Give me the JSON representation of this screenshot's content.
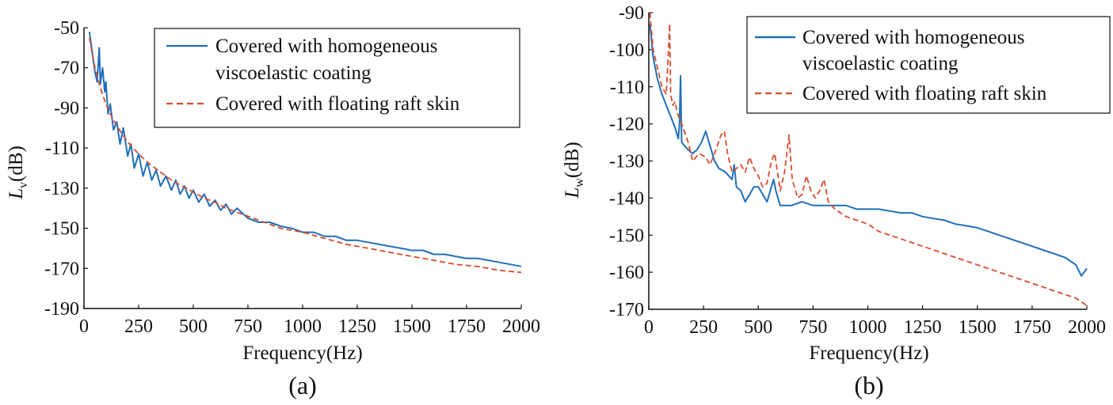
{
  "colors": {
    "blue": "#1f6fba",
    "red": "#d94a2a"
  },
  "chart_data": [
    {
      "type": "line",
      "panel_label": "(a)",
      "xlabel": "Frequency(Hz)",
      "ylabel_main": "L",
      "ylabel_sub": "v",
      "ylabel_unit": "(dB)",
      "xlim": [
        0,
        2000
      ],
      "ylim": [
        -190,
        -50
      ],
      "xticks": [
        0,
        250,
        500,
        750,
        1000,
        1250,
        1500,
        1750,
        2000
      ],
      "xtick_labels": [
        "0",
        "250",
        "500",
        "750",
        "1000",
        "1250",
        "1500",
        "1750",
        "2000"
      ],
      "yticks": [
        -50,
        -70,
        -90,
        -110,
        -130,
        -150,
        -170,
        -190
      ],
      "ytick_labels": [
        "-50",
        "-70",
        "-90",
        "-110",
        "-130",
        "-150",
        "-170",
        "-190"
      ],
      "legend": [
        "Covered with homogeneous viscoelastic coating",
        "Covered with floating raft skin"
      ],
      "legend_lines": [
        [
          "Covered with homogeneous",
          "viscoelastic coating"
        ],
        [
          "Covered with floating raft skin"
        ]
      ],
      "series": [
        {
          "name": "Covered with homogeneous viscoelastic coating",
          "style": "solid",
          "x": [
            25,
            50,
            60,
            70,
            75,
            85,
            95,
            100,
            110,
            120,
            135,
            150,
            165,
            180,
            200,
            215,
            230,
            250,
            270,
            290,
            310,
            330,
            350,
            375,
            400,
            420,
            440,
            460,
            480,
            500,
            525,
            550,
            575,
            600,
            625,
            650,
            675,
            700,
            750,
            800,
            850,
            900,
            950,
            1000,
            1050,
            1100,
            1150,
            1200,
            1250,
            1300,
            1350,
            1400,
            1450,
            1500,
            1550,
            1600,
            1650,
            1700,
            1750,
            1800,
            1850,
            1900,
            1950,
            2000
          ],
          "y": [
            -52,
            -72,
            -77,
            -60,
            -78,
            -70,
            -82,
            -77,
            -93,
            -88,
            -101,
            -97,
            -108,
            -100,
            -114,
            -108,
            -120,
            -113,
            -124,
            -117,
            -126,
            -121,
            -129,
            -124,
            -131,
            -126,
            -133,
            -129,
            -135,
            -131,
            -137,
            -133,
            -139,
            -136,
            -141,
            -138,
            -143,
            -140,
            -145,
            -147,
            -147,
            -149,
            -150,
            -152,
            -152,
            -154,
            -154,
            -156,
            -156,
            -157,
            -158,
            -159,
            -160,
            -161,
            -161,
            -163,
            -163,
            -164,
            -165,
            -165,
            -166,
            -167,
            -168,
            -169
          ]
        },
        {
          "name": "Covered with floating raft skin",
          "style": "dashed",
          "x": [
            25,
            50,
            75,
            100,
            125,
            150,
            175,
            200,
            250,
            300,
            350,
            400,
            450,
            500,
            550,
            600,
            650,
            700,
            750,
            800,
            850,
            900,
            950,
            1000,
            1100,
            1200,
            1300,
            1400,
            1500,
            1600,
            1700,
            1800,
            1900,
            2000
          ],
          "y": [
            -55,
            -70,
            -80,
            -88,
            -94,
            -99,
            -103,
            -107,
            -113,
            -118,
            -122,
            -126,
            -129,
            -132,
            -135,
            -137,
            -140,
            -142,
            -144,
            -146,
            -148,
            -150,
            -151,
            -152,
            -155,
            -158,
            -160,
            -162,
            -164,
            -166,
            -168,
            -169,
            -171,
            -172
          ]
        }
      ]
    },
    {
      "type": "line",
      "panel_label": "(b)",
      "xlabel": "Frequency(Hz)",
      "ylabel_main": "L",
      "ylabel_sub": "w",
      "ylabel_unit": "(dB)",
      "xlim": [
        0,
        2000
      ],
      "ylim": [
        -170,
        -90
      ],
      "xticks": [
        0,
        250,
        500,
        750,
        1000,
        1250,
        1500,
        1750,
        2000
      ],
      "xtick_labels": [
        "0",
        "250",
        "500",
        "750",
        "1000",
        "1250",
        "1500",
        "1750",
        "2000"
      ],
      "yticks": [
        -90,
        -100,
        -110,
        -120,
        -130,
        -140,
        -150,
        -160,
        -170
      ],
      "ytick_labels": [
        "-90",
        "-100",
        "-110",
        "-120",
        "-130",
        "-140",
        "-150",
        "-160",
        "-170"
      ],
      "legend": [
        "Covered with homogeneous viscoelastic coating",
        "Covered with floating raft skin"
      ],
      "legend_lines": [
        [
          "Covered with homogeneous",
          "viscoelastic coating"
        ],
        [
          "Covered with floating raft skin"
        ]
      ],
      "series": [
        {
          "name": "Covered with homogeneous viscoelastic coating",
          "style": "solid",
          "x": [
            5,
            20,
            40,
            60,
            80,
            100,
            120,
            135,
            140,
            145,
            150,
            165,
            180,
            200,
            220,
            240,
            260,
            280,
            300,
            320,
            350,
            380,
            390,
            400,
            420,
            440,
            460,
            480,
            500,
            520,
            540,
            560,
            570,
            580,
            600,
            650,
            700,
            750,
            800,
            850,
            900,
            950,
            1000,
            1050,
            1100,
            1150,
            1200,
            1250,
            1300,
            1350,
            1400,
            1450,
            1500,
            1550,
            1600,
            1650,
            1700,
            1750,
            1800,
            1850,
            1900,
            1950,
            1975,
            2000
          ],
          "y": [
            -93,
            -102,
            -108,
            -112,
            -115,
            -118,
            -121,
            -124,
            -120,
            -107,
            -125,
            -126,
            -127,
            -128,
            -127,
            -125,
            -122,
            -126,
            -130,
            -132,
            -133,
            -135,
            -131,
            -137,
            -138,
            -141,
            -139,
            -137,
            -137,
            -139,
            -141,
            -137,
            -135,
            -138,
            -142,
            -142,
            -141,
            -142,
            -142,
            -142,
            -142,
            -143,
            -143,
            -143,
            -143.5,
            -144,
            -144,
            -145,
            -145.5,
            -146,
            -147,
            -147.5,
            -148,
            -149,
            -150,
            -151,
            -152,
            -153,
            -154,
            -155,
            -156,
            -158,
            -161,
            -159
          ]
        },
        {
          "name": "Covered with floating raft skin",
          "style": "dashed",
          "x": [
            5,
            20,
            40,
            60,
            80,
            90,
            95,
            100,
            110,
            120,
            130,
            150,
            180,
            200,
            230,
            260,
            280,
            300,
            330,
            345,
            360,
            380,
            400,
            420,
            440,
            460,
            480,
            500,
            520,
            540,
            560,
            575,
            600,
            620,
            640,
            655,
            680,
            700,
            720,
            740,
            760,
            780,
            800,
            820,
            850,
            900,
            950,
            1000,
            1050,
            1100,
            1150,
            1200,
            1250,
            1300,
            1350,
            1400,
            1450,
            1500,
            1550,
            1600,
            1650,
            1700,
            1750,
            1800,
            1850,
            1900,
            1950,
            2000
          ],
          "y": [
            -90,
            -100,
            -105,
            -110,
            -112,
            -100,
            -93,
            -112,
            -115,
            -114,
            -117,
            -120,
            -125,
            -130,
            -128,
            -129,
            -131,
            -128,
            -123,
            -122,
            -128,
            -133,
            -132,
            -131,
            -133,
            -129,
            -132,
            -134,
            -137,
            -136,
            -130,
            -128,
            -138,
            -133,
            -123,
            -135,
            -140,
            -139,
            -134,
            -138,
            -140,
            -138,
            -135,
            -141,
            -143,
            -145,
            -146,
            -147,
            -149,
            -150,
            -151,
            -152,
            -153,
            -154,
            -155,
            -156,
            -157,
            -158,
            -159,
            -160,
            -161,
            -162,
            -163,
            -164,
            -165,
            -166,
            -167,
            -169
          ]
        }
      ]
    }
  ]
}
